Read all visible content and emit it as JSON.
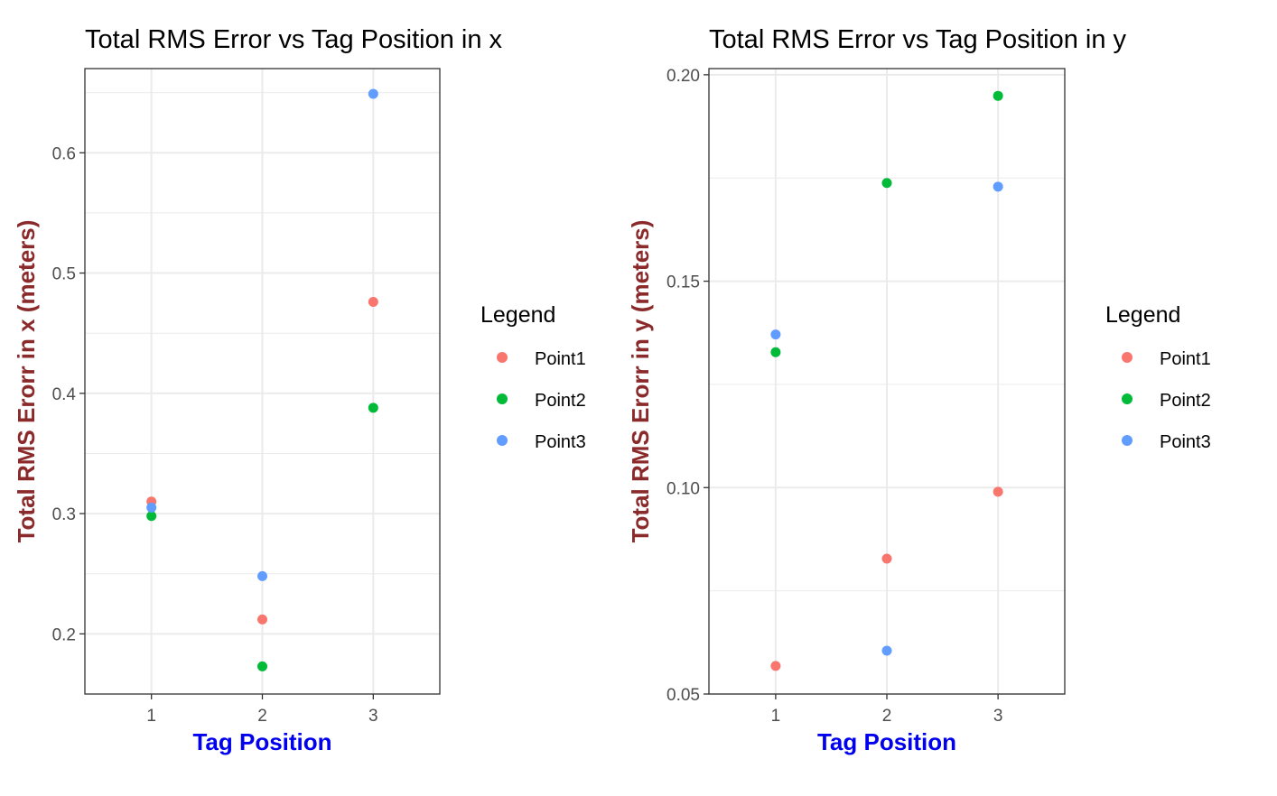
{
  "chart_data": [
    {
      "type": "scatter",
      "title": "Total RMS Error vs Tag Position in x",
      "xlabel": "Tag Position",
      "ylabel": "Total RMS Erorr in x (meters)",
      "categories": [
        "1",
        "2",
        "3"
      ],
      "ylim": [
        0.15,
        0.67
      ],
      "yticks": [
        "0.2",
        "0.3",
        "0.4",
        "0.5",
        "0.6"
      ],
      "grid": true,
      "legend": {
        "title": "Legend",
        "placement": "right"
      },
      "series": [
        {
          "name": "Point1",
          "color": "#F8766D",
          "values": [
            0.31,
            0.212,
            0.476
          ]
        },
        {
          "name": "Point2",
          "color": "#00BA38",
          "values": [
            0.298,
            0.173,
            0.388
          ]
        },
        {
          "name": "Point3",
          "color": "#619CFF",
          "values": [
            0.305,
            0.248,
            0.649
          ]
        }
      ]
    },
    {
      "type": "scatter",
      "title": "Total RMS Error vs Tag Position in y",
      "xlabel": "Tag Position",
      "ylabel": "Total RMS Erorr in y (meters)",
      "categories": [
        "1",
        "2",
        "3"
      ],
      "ylim": [
        0.05,
        0.2015
      ],
      "yticks": [
        "0.05",
        "0.10",
        "0.15",
        "0.20"
      ],
      "grid": true,
      "legend": {
        "title": "Legend",
        "placement": "right"
      },
      "series": [
        {
          "name": "Point1",
          "color": "#F8766D",
          "values": [
            0.0568,
            0.0828,
            0.099
          ]
        },
        {
          "name": "Point2",
          "color": "#00BA38",
          "values": [
            0.1328,
            0.1738,
            0.1949
          ]
        },
        {
          "name": "Point3",
          "color": "#619CFF",
          "values": [
            0.1371,
            0.0605,
            0.1729
          ]
        }
      ]
    }
  ]
}
